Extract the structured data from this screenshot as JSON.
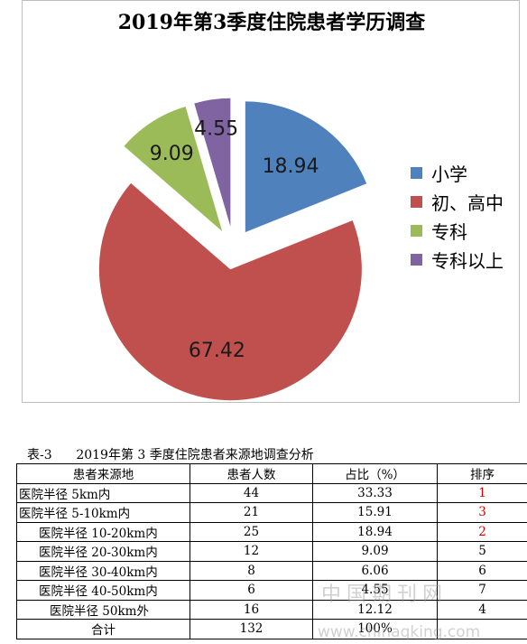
{
  "chart_data": {
    "type": "pie",
    "title": "2019年第3季度住院患者学历调查",
    "exploded": true,
    "series": [
      {
        "name": "小学",
        "value": 18.94,
        "color": "#4F81BD"
      },
      {
        "name": "初、高中",
        "value": 67.42,
        "color": "#C0504D"
      },
      {
        "name": "专科",
        "value": 9.09,
        "color": "#9BBB59"
      },
      {
        "name": "专科以上",
        "value": 4.55,
        "color": "#8064A2"
      }
    ],
    "legend_position": "right"
  },
  "table": {
    "caption": "表-3      2019年第 3 季度住院患者来源地调查分析",
    "headers": [
      "患者来源地",
      "患者人数",
      "占比（%）",
      "排序"
    ],
    "rows": [
      {
        "source": "医院半径 5km内",
        "count": "44",
        "percent": "33.33",
        "rank": "1",
        "rank_red": true,
        "indent": 0
      },
      {
        "source": "医院半径 5-10km内",
        "count": "21",
        "percent": "15.91",
        "rank": "3",
        "rank_red": true,
        "indent": 0
      },
      {
        "source": "医院半径 10-20km内",
        "count": "25",
        "percent": "18.94",
        "rank": "2",
        "rank_red": true,
        "indent": 1
      },
      {
        "source": "医院半径 20-30km内",
        "count": "12",
        "percent": "9.09",
        "rank": "5",
        "rank_red": false,
        "indent": 1
      },
      {
        "source": "医院半径 30-40km内",
        "count": "8",
        "percent": "6.06",
        "rank": "6",
        "rank_red": false,
        "indent": 1
      },
      {
        "source": "医院半径 40-50km内",
        "count": "6",
        "percent": "4.55",
        "rank": "7",
        "rank_red": false,
        "indent": 1
      },
      {
        "source": "医院半径 50km外",
        "count": "16",
        "percent": "12.12",
        "rank": "4",
        "rank_red": false,
        "indent": 2
      }
    ],
    "total": {
      "label": "合计",
      "count": "132",
      "percent": "100%",
      "rank": ""
    }
  },
  "watermark": {
    "cn": "中国期刊网",
    "url": "www.chinaqking.com"
  }
}
